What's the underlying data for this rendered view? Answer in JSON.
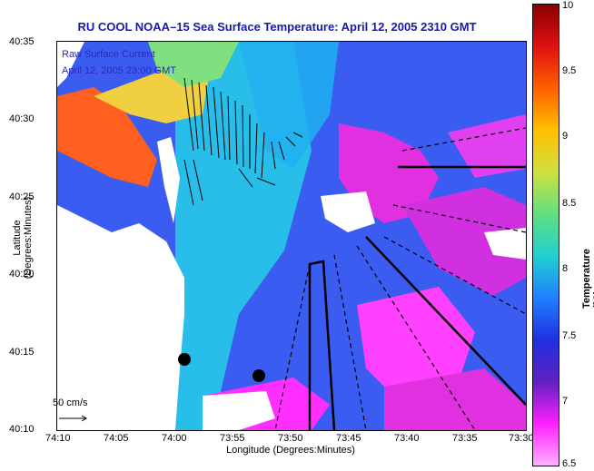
{
  "title": "RU COOL  NOAA–15  Sea Surface Temperature:  April 12, 2005 2310 GMT",
  "legend": {
    "line1": "Raw Surface Current",
    "line2": "April 12, 2005 23:00 GMT"
  },
  "scale_label": "50 cm/s",
  "axes": {
    "xlabel": "Longitude (Degrees:Minutes)",
    "ylabel": "Latitude (Degrees:Minutes)",
    "xticks": [
      "74:10",
      "74:05",
      "74:00",
      "73:55",
      "73:50",
      "73:45",
      "73:40",
      "73:35",
      "73:30"
    ],
    "yticks": [
      "40:35",
      "40:30",
      "40:25",
      "40:20",
      "40:15",
      "40:10"
    ]
  },
  "colorbar": {
    "label": "Temperature (°C)",
    "ticks": [
      "10",
      "9.5",
      "9",
      "8.5",
      "8",
      "7.5",
      "7",
      "6.5"
    ],
    "colors": [
      "#8b0000",
      "#e01010",
      "#ff6000",
      "#ffc000",
      "#d0e040",
      "#60e080",
      "#20d0d0",
      "#2080ff",
      "#2030e0",
      "#6020c0",
      "#ff20ff",
      "#ffb0ff"
    ]
  }
}
